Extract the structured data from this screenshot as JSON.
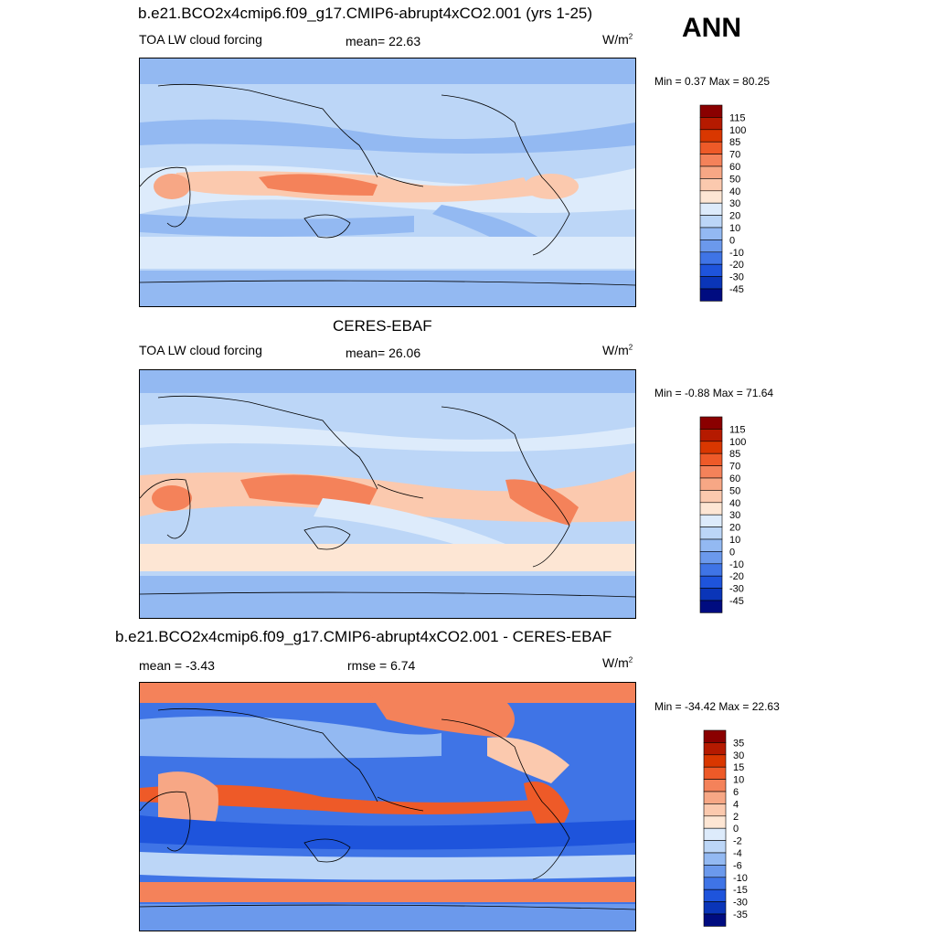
{
  "season": "ANN",
  "panels": [
    {
      "title": "b.e21.BCO2x4cmip6.f09_g17.CMIP6-abrupt4xCO2.001 (yrs 1-25)",
      "left_label": "TOA LW cloud forcing",
      "center_label": "mean=  22.63",
      "units": "W/m",
      "units_sup": "2",
      "minmax": "Min =   0.37 Max =  80.25",
      "colorbar_levels": [
        "115",
        "100",
        "85",
        "70",
        "60",
        "50",
        "40",
        "30",
        "20",
        "10",
        "0",
        "-10",
        "-20",
        "-30",
        "-45"
      ],
      "colorbar_colors": [
        "#8a0000",
        "#b51a00",
        "#d93700",
        "#ee5a28",
        "#f4825a",
        "#f7a785",
        "#fbc9ae",
        "#fde6d4",
        "#ddebfb",
        "#bcd6f7",
        "#93b9f2",
        "#6b99ec",
        "#3f74e6",
        "#1e54dc",
        "#0a35b8",
        "#000c80"
      ]
    },
    {
      "title": "CERES-EBAF",
      "left_label": "TOA LW cloud forcing",
      "center_label": "mean=  26.06",
      "units": "W/m",
      "units_sup": "2",
      "minmax": "Min =  -0.88 Max =  71.64",
      "colorbar_levels": [
        "115",
        "100",
        "85",
        "70",
        "60",
        "50",
        "40",
        "30",
        "20",
        "10",
        "0",
        "-10",
        "-20",
        "-30",
        "-45"
      ],
      "colorbar_colors": [
        "#8a0000",
        "#b51a00",
        "#d93700",
        "#ee5a28",
        "#f4825a",
        "#f7a785",
        "#fbc9ae",
        "#fde6d4",
        "#ddebfb",
        "#bcd6f7",
        "#93b9f2",
        "#6b99ec",
        "#3f74e6",
        "#1e54dc",
        "#0a35b8",
        "#000c80"
      ]
    },
    {
      "title": "b.e21.BCO2x4cmip6.f09_g17.CMIP6-abrupt4xCO2.001 - CERES-EBAF",
      "left_label": "mean =  -3.43",
      "center_label": "rmse =   6.74",
      "units": "W/m",
      "units_sup": "2",
      "minmax": "Min = -34.42 Max =  22.63",
      "colorbar_levels": [
        "35",
        "30",
        "15",
        "10",
        "6",
        "4",
        "2",
        "0",
        "-2",
        "-4",
        "-6",
        "-10",
        "-15",
        "-30",
        "-35"
      ],
      "colorbar_colors": [
        "#8a0000",
        "#b51a00",
        "#d93700",
        "#ee5a28",
        "#f4825a",
        "#f7a785",
        "#fbc9ae",
        "#fde6d4",
        "#ddebfb",
        "#bcd6f7",
        "#93b9f2",
        "#6b99ec",
        "#3f74e6",
        "#1e54dc",
        "#0a35b8",
        "#000c80"
      ]
    }
  ]
}
